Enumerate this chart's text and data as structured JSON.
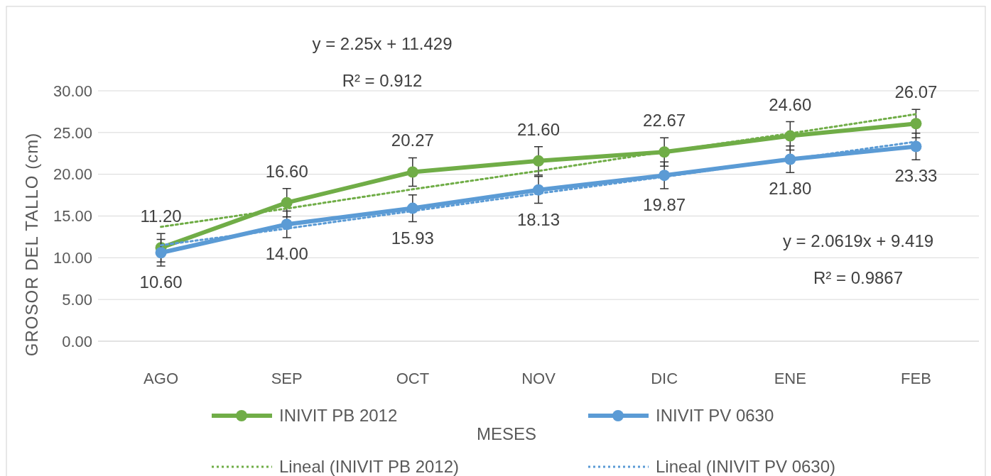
{
  "chart_data": {
    "type": "line",
    "xlabel": "MESES",
    "ylabel": "GROSOR DEL TALLO  (cm)",
    "categories": [
      "AGO",
      "SEP",
      "OCT",
      "NOV",
      "DIC",
      "ENE",
      "FEB"
    ],
    "series": [
      {
        "name": "INIVIT PB 2012",
        "color": "#70ad47",
        "marker": "circle",
        "values": [
          11.2,
          16.6,
          20.27,
          21.6,
          22.67,
          24.6,
          26.07
        ],
        "value_labels": [
          "11.20",
          "16.60",
          "20.27",
          "21.60",
          "22.67",
          "24.60",
          "26.07"
        ],
        "errors": [
          1.7,
          1.7,
          1.7,
          1.7,
          1.7,
          1.7,
          1.7
        ]
      },
      {
        "name": "INIVIT PV 0630",
        "color": "#5b9bd5",
        "marker": "circle",
        "values": [
          10.6,
          14.0,
          15.93,
          18.13,
          19.87,
          21.8,
          23.33
        ],
        "value_labels": [
          "10.60",
          "14.00",
          "15.93",
          "18.13",
          "19.87",
          "21.80",
          "23.33"
        ],
        "errors": [
          1.6,
          1.6,
          1.6,
          1.6,
          1.6,
          1.6,
          1.6
        ]
      },
      {
        "name": "Lineal (INIVIT PB 2012)",
        "color": "#70ad47",
        "marker": "none",
        "line_style": "dotted",
        "values": [
          13.7,
          15.9,
          18.2,
          20.4,
          22.7,
          24.9,
          27.2
        ]
      },
      {
        "name": "Lineal (INIVIT PV 0630)",
        "color": "#5b9bd5",
        "marker": "none",
        "line_style": "dotted",
        "values": [
          11.5,
          13.5,
          15.6,
          17.7,
          19.7,
          21.8,
          23.9
        ]
      }
    ],
    "ylim": [
      0,
      30
    ],
    "yticks": [
      {
        "value": 0,
        "label": "0.00"
      },
      {
        "value": 5,
        "label": "5.00"
      },
      {
        "value": 10,
        "label": "10.00"
      },
      {
        "value": 15,
        "label": "15.00"
      },
      {
        "value": 20,
        "label": "20.00"
      },
      {
        "value": 25,
        "label": "25.00"
      },
      {
        "value": 30,
        "label": "30.00"
      }
    ],
    "grid": "y",
    "legend": "bottom",
    "annotations": [
      "y = 2.25x + 11.429",
      "R² = 0.912",
      "y = 2.0619x + 9.419",
      "R² = 0.9867"
    ]
  }
}
